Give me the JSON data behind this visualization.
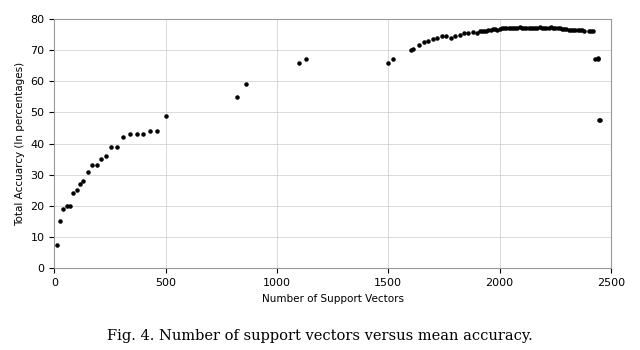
{
  "title": "Fig. 4. Number of support vectors versus mean accuracy.",
  "xlabel": "Number of Support Vectors",
  "ylabel": "Total Accuarcy (In percentages)",
  "xlim": [
    0,
    2500
  ],
  "ylim": [
    0,
    80
  ],
  "xticks": [
    0,
    500,
    1000,
    1500,
    2000,
    2500
  ],
  "yticks": [
    0,
    10,
    20,
    30,
    40,
    50,
    60,
    70,
    80
  ],
  "background_color": "#ffffff",
  "scatter_color": "#000000",
  "marker_size": 5,
  "x_values": [
    10,
    25,
    40,
    55,
    70,
    85,
    100,
    115,
    130,
    150,
    170,
    190,
    210,
    230,
    255,
    280,
    310,
    340,
    370,
    400,
    430,
    460,
    500,
    820,
    860,
    1100,
    1130,
    1500,
    1520,
    1600,
    1610,
    1640,
    1660,
    1680,
    1700,
    1720,
    1740,
    1760,
    1780,
    1800,
    1820,
    1840,
    1860,
    1880,
    1900,
    1910,
    1920,
    1930,
    1940,
    1950,
    1960,
    1970,
    1980,
    1990,
    2000,
    2010,
    2020,
    2030,
    2040,
    2050,
    2060,
    2070,
    2080,
    2090,
    2100,
    2110,
    2120,
    2130,
    2140,
    2150,
    2160,
    2170,
    2180,
    2190,
    2200,
    2210,
    2220,
    2230,
    2240,
    2250,
    2260,
    2270,
    2280,
    2290,
    2300,
    2310,
    2320,
    2330,
    2340,
    2350,
    2360,
    2370,
    2380,
    2400,
    2410,
    2420,
    2430,
    2440,
    2442,
    2446,
    2450
  ],
  "y_values": [
    7.5,
    15,
    19,
    20,
    20,
    24,
    25,
    27,
    28,
    31,
    33,
    33,
    35,
    36,
    39,
    39,
    42,
    43,
    43,
    43,
    44,
    44,
    49,
    55,
    59,
    66,
    67,
    66,
    67,
    70,
    70.5,
    71.5,
    72.5,
    73,
    73.5,
    74,
    74.5,
    74.5,
    74,
    74.5,
    75,
    75.5,
    75.5,
    75.8,
    75.5,
    76,
    76,
    76.2,
    76.3,
    76.5,
    76.5,
    76.7,
    76.8,
    76.5,
    76.8,
    77,
    77,
    77,
    77.2,
    77,
    77,
    77,
    77.2,
    77.3,
    77,
    77,
    77,
    77,
    77,
    77,
    77,
    77,
    77.3,
    77,
    77,
    77,
    77.2,
    77.3,
    77,
    77,
    77,
    77,
    76.8,
    76.8,
    76.8,
    76.5,
    76.5,
    76.5,
    76.5,
    76.5,
    76.5,
    76.5,
    76,
    76,
    76,
    76,
    67,
    67.3,
    67.5,
    47.5,
    47.7
  ]
}
